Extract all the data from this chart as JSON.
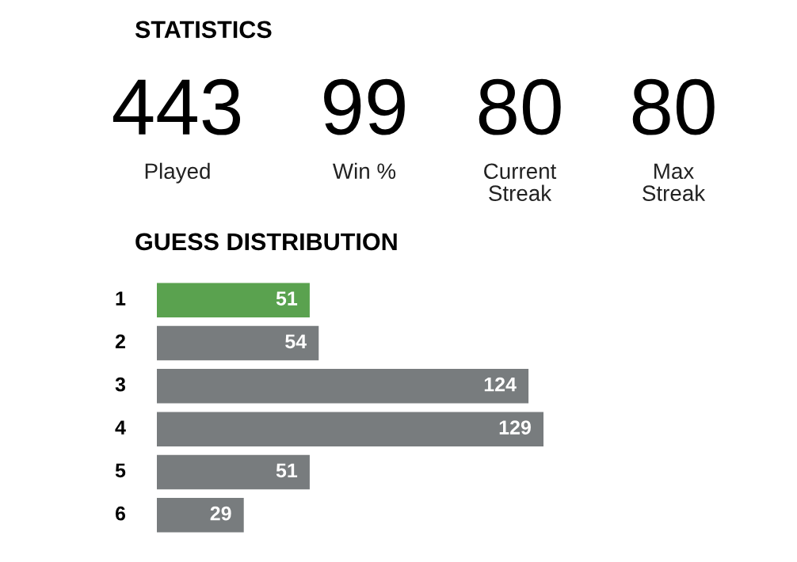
{
  "chart_data": [
    {
      "type": "other",
      "title": "STATISTICS",
      "annotations": [
        "443",
        "Played",
        "99",
        "Win %",
        "80",
        "Current\nStreak",
        "80",
        "Max\nStreak"
      ]
    },
    {
      "type": "bar",
      "orientation": "horizontal",
      "title": "GUESS DISTRIBUTION",
      "categories": [
        "1",
        "2",
        "3",
        "4",
        "5",
        "6"
      ],
      "values": [
        51,
        54,
        124,
        129,
        51,
        29
      ],
      "colors": [
        "#5aa24f",
        "#787c7e",
        "#787c7e",
        "#787c7e",
        "#787c7e",
        "#787c7e"
      ],
      "data_labels": true
    }
  ]
}
